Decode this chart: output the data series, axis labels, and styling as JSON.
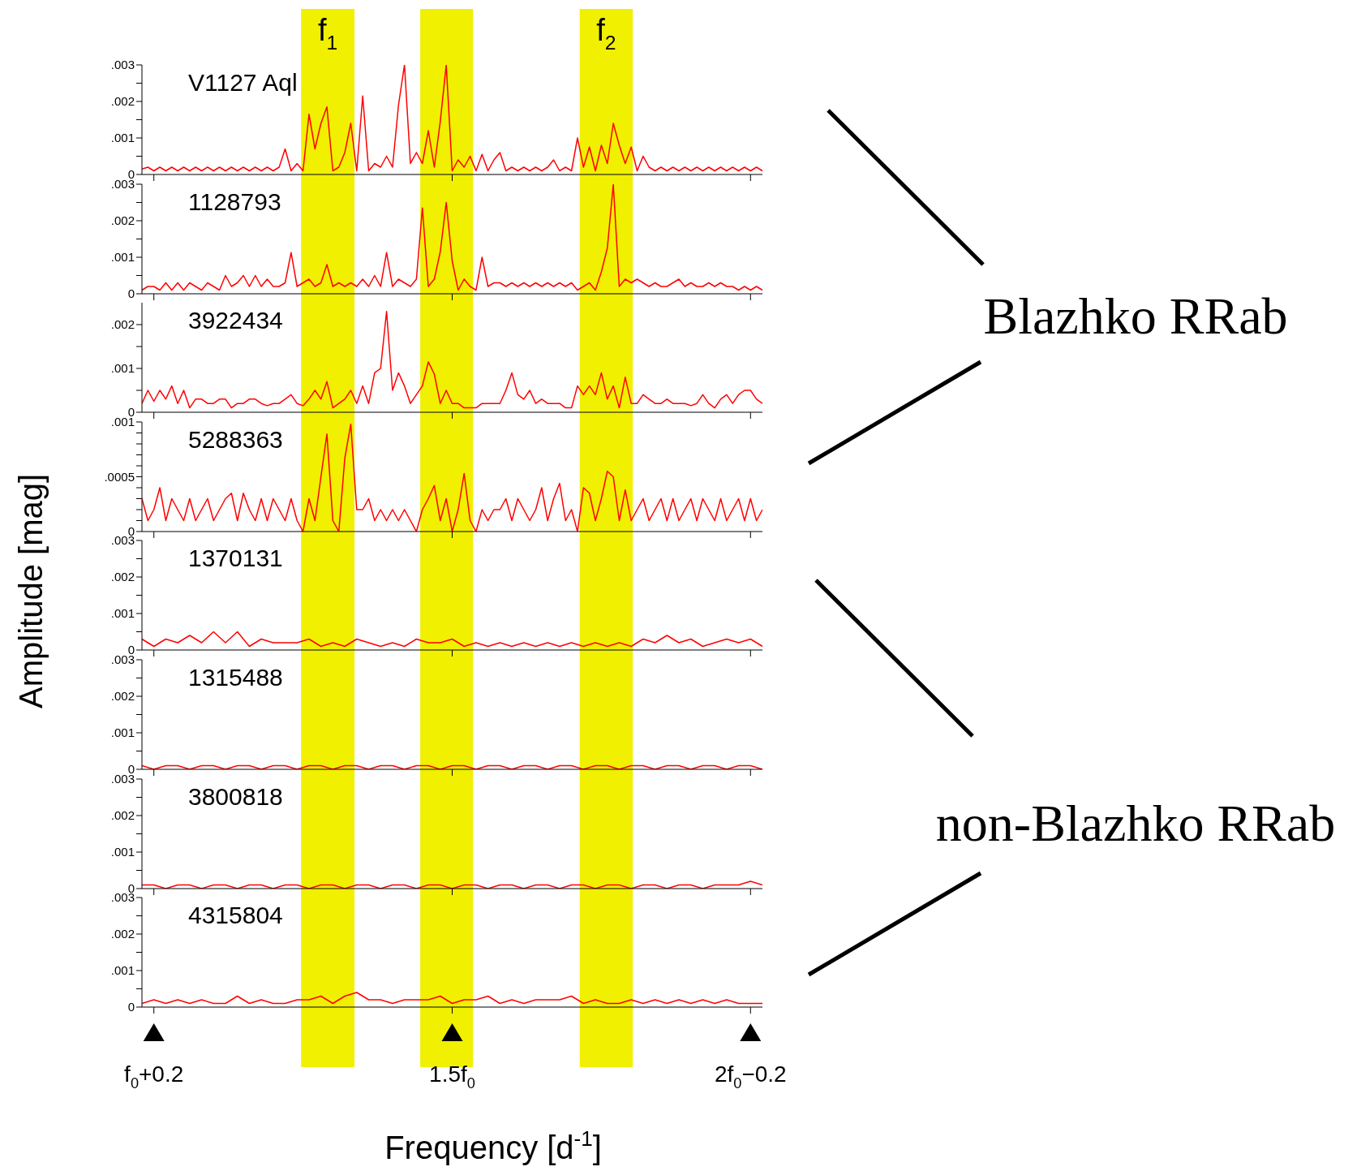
{
  "chart_data": [
    {
      "type": "line",
      "title": "V1127 Aql",
      "annotations": [
        "f$_{1}$",
        "f$_{2}$"
      ],
      "tick_labels": "y",
      "categories": [
        null,
        null,
        null,
        null,
        null,
        null,
        null,
        null,
        null,
        null,
        null,
        null,
        null,
        null,
        null,
        null,
        null,
        null,
        null,
        null,
        null,
        null,
        null,
        null,
        null,
        null,
        null,
        null,
        null,
        null,
        null,
        null,
        null,
        null,
        null,
        null,
        null,
        null,
        null,
        null,
        null,
        null,
        null,
        null,
        null,
        null,
        null,
        null,
        null,
        null,
        null,
        null,
        null,
        null,
        null,
        null,
        null,
        null,
        null,
        null,
        null,
        null,
        null,
        null,
        null,
        null,
        null,
        null,
        null,
        null,
        null,
        null,
        null,
        null,
        null,
        null,
        null,
        null,
        null,
        null,
        null,
        null,
        null,
        null,
        null,
        null,
        null,
        null,
        null,
        null,
        null,
        null,
        null,
        null,
        null,
        null,
        null,
        null,
        null,
        null,
        null,
        null,
        null,
        null,
        null
      ],
      "ylim": [
        0,
        0.003
      ],
      "yticks": [
        {
          "value": 0,
          "label": "0"
        },
        {
          "value": 0.0005,
          "label": null
        },
        {
          "value": 0.001,
          "label": ".001"
        },
        {
          "value": 0.0015,
          "label": null
        },
        {
          "value": 0.002,
          "label": ".002"
        },
        {
          "value": 0.0025,
          "label": null
        },
        {
          "value": 0.003,
          "label": ".003"
        }
      ],
      "series": [
        {
          "color": "#ff0000",
          "values": [
            0.00015,
            0.0002,
            0.0001,
            0.0002,
            0.0001,
            0.0002,
            0.0001,
            0.0002,
            0.0001,
            0.0002,
            0.0001,
            0.0002,
            0.0001,
            0.0002,
            0.0001,
            0.0002,
            0.0001,
            0.0002,
            0.0001,
            0.0002,
            0.0001,
            0.0002,
            0.0001,
            0.0002,
            0.0007,
            0.0001,
            0.0003,
            0.0001,
            0.00165,
            0.0007,
            0.0014,
            0.00185,
            0.0001,
            0.0002,
            0.0006,
            0.0014,
            0.0001,
            0.00215,
            0.0001,
            0.0003,
            0.0002,
            0.0005,
            0.0002,
            0.0019,
            0.003,
            0.0003,
            0.0006,
            0.0003,
            0.0012,
            0.0002,
            0.00145,
            0.003,
            0.0001,
            0.0004,
            0.0002,
            0.0005,
            0.0001,
            0.00055,
            0.0001,
            0.0004,
            0.0006,
            0.0001,
            0.0002,
            0.0001,
            0.0002,
            0.0001,
            0.0002,
            0.0001,
            0.0002,
            0.0004,
            0.0001,
            0.0002,
            0.0001,
            0.001,
            0.0002,
            0.00075,
            0.0001,
            0.0008,
            0.0003,
            0.0014,
            0.0008,
            0.0003,
            0.00075,
            0.0001,
            0.0005,
            0.0002,
            0.0001,
            0.0002,
            0.0001,
            0.0002,
            0.0001,
            0.0002,
            0.0001,
            0.0002,
            0.0001,
            0.0002,
            0.0001,
            0.0002,
            0.0001,
            0.0002,
            0.0001,
            0.0002,
            0.0001,
            0.0002,
            0.0001
          ]
        }
      ]
    },
    {
      "type": "line",
      "title": "1128793",
      "tick_labels": "y",
      "categories": [
        null,
        null,
        null,
        null,
        null,
        null,
        null,
        null,
        null,
        null,
        null,
        null,
        null,
        null,
        null,
        null,
        null,
        null,
        null,
        null,
        null,
        null,
        null,
        null,
        null,
        null,
        null,
        null,
        null,
        null,
        null,
        null,
        null,
        null,
        null,
        null,
        null,
        null,
        null,
        null,
        null,
        null,
        null,
        null,
        null,
        null,
        null,
        null,
        null,
        null,
        null,
        null,
        null,
        null,
        null,
        null,
        null,
        null,
        null,
        null,
        null,
        null,
        null,
        null,
        null,
        null,
        null,
        null,
        null,
        null,
        null,
        null,
        null,
        null,
        null,
        null,
        null,
        null,
        null,
        null,
        null,
        null,
        null,
        null,
        null,
        null,
        null,
        null,
        null,
        null,
        null,
        null,
        null,
        null,
        null,
        null,
        null,
        null,
        null,
        null,
        null,
        null,
        null,
        null,
        null
      ],
      "ylim": [
        0,
        0.003
      ],
      "yticks": [
        {
          "value": 0,
          "label": "0"
        },
        {
          "value": 0.0005,
          "label": null
        },
        {
          "value": 0.001,
          "label": ".001"
        },
        {
          "value": 0.0015,
          "label": null
        },
        {
          "value": 0.002,
          "label": ".002"
        },
        {
          "value": 0.0025,
          "label": null
        },
        {
          "value": 0.003,
          "label": ".003"
        }
      ],
      "series": [
        {
          "color": "#ff0000",
          "values": [
            0.0001,
            0.0002,
            0.0002,
            0.0001,
            0.0003,
            0.0001,
            0.0003,
            0.0001,
            0.0003,
            0.0002,
            0.0001,
            0.0003,
            0.0002,
            0.0001,
            0.0005,
            0.0002,
            0.0003,
            0.0005,
            0.0002,
            0.0005,
            0.0002,
            0.0004,
            0.0002,
            0.0002,
            0.0003,
            0.00113,
            0.0002,
            0.0003,
            0.0004,
            0.0002,
            0.0003,
            0.0008,
            0.0002,
            0.0003,
            0.0002,
            0.0003,
            0.0002,
            0.0004,
            0.0002,
            0.0005,
            0.0002,
            0.00113,
            0.0002,
            0.0004,
            0.0003,
            0.0002,
            0.0004,
            0.00235,
            0.0002,
            0.0004,
            0.00115,
            0.0025,
            0.0009,
            0.0001,
            0.0004,
            0.0002,
            0.0001,
            0.001,
            0.0002,
            0.0003,
            0.0003,
            0.0002,
            0.0003,
            0.0002,
            0.0003,
            0.0002,
            0.0003,
            0.0002,
            0.0003,
            0.0002,
            0.0003,
            0.0002,
            0.0003,
            0.0001,
            0.0002,
            0.0003,
            0.0001,
            0.0006,
            0.00125,
            0.003,
            0.0002,
            0.0004,
            0.0003,
            0.0004,
            0.0003,
            0.0002,
            0.0003,
            0.0002,
            0.0002,
            0.0003,
            0.0004,
            0.0002,
            0.0003,
            0.0002,
            0.0002,
            0.0003,
            0.0002,
            0.0003,
            0.0002,
            0.0002,
            0.0001,
            0.0002,
            0.0001,
            0.0002,
            0.0001
          ]
        }
      ]
    },
    {
      "type": "line",
      "title": "3922434",
      "annotations": [
        "Blazhko RRab"
      ],
      "tick_labels": "y",
      "categories": [
        null,
        null,
        null,
        null,
        null,
        null,
        null,
        null,
        null,
        null,
        null,
        null,
        null,
        null,
        null,
        null,
        null,
        null,
        null,
        null,
        null,
        null,
        null,
        null,
        null,
        null,
        null,
        null,
        null,
        null,
        null,
        null,
        null,
        null,
        null,
        null,
        null,
        null,
        null,
        null,
        null,
        null,
        null,
        null,
        null,
        null,
        null,
        null,
        null,
        null,
        null,
        null,
        null,
        null,
        null,
        null,
        null,
        null,
        null,
        null,
        null,
        null,
        null,
        null,
        null,
        null,
        null,
        null,
        null,
        null,
        null,
        null,
        null,
        null,
        null,
        null,
        null,
        null,
        null,
        null,
        null,
        null,
        null,
        null,
        null,
        null,
        null,
        null,
        null,
        null,
        null,
        null,
        null,
        null,
        null,
        null,
        null,
        null,
        null,
        null,
        null,
        null,
        null,
        null,
        null
      ],
      "ylim": [
        0,
        0.0025
      ],
      "yticks": [
        {
          "value": 0,
          "label": "0"
        },
        {
          "value": 0.0005,
          "label": null
        },
        {
          "value": 0.001,
          "label": ".001"
        },
        {
          "value": 0.0015,
          "label": null
        },
        {
          "value": 0.002,
          "label": ".002"
        }
      ],
      "series": [
        {
          "color": "#ff0000",
          "values": [
            0.0002,
            0.0005,
            0.00025,
            0.0005,
            0.0003,
            0.0006,
            0.0002,
            0.0005,
            0.0001,
            0.0003,
            0.0003,
            0.0002,
            0.0002,
            0.0003,
            0.0003,
            0.0001,
            0.0002,
            0.0002,
            0.0003,
            0.0003,
            0.0002,
            0.00015,
            0.0002,
            0.0002,
            0.0003,
            0.0004,
            0.0002,
            0.00015,
            0.0003,
            0.0005,
            0.0003,
            0.0007,
            0.0001,
            0.0002,
            0.0003,
            0.0005,
            0.0002,
            0.0006,
            0.0002,
            0.0009,
            0.001,
            0.0023,
            0.0005,
            0.0009,
            0.0006,
            0.0002,
            0.0004,
            0.0006,
            0.00115,
            0.00087,
            0.0002,
            0.0005,
            0.0002,
            0.0002,
            0.0001,
            0.0001,
            0.0001,
            0.0002,
            0.0002,
            0.0002,
            0.0002,
            0.0005,
            0.0009,
            0.0004,
            0.0003,
            0.0005,
            0.0002,
            0.0003,
            0.0002,
            0.0002,
            0.0002,
            0.0001,
            0.0001,
            0.0006,
            0.0004,
            0.0006,
            0.0004,
            0.0009,
            0.0003,
            0.0006,
            0.0001,
            0.0008,
            0.0002,
            0.0002,
            0.0004,
            0.0003,
            0.0002,
            0.0002,
            0.0003,
            0.0002,
            0.0002,
            0.0002,
            0.00015,
            0.0002,
            0.0004,
            0.0002,
            0.0001,
            0.0003,
            0.0004,
            0.0002,
            0.0004,
            0.0005,
            0.0005,
            0.0003,
            0.0002
          ]
        }
      ]
    },
    {
      "type": "line",
      "title": "5288363",
      "tick_labels": "y",
      "categories": [
        null,
        null,
        null,
        null,
        null,
        null,
        null,
        null,
        null,
        null,
        null,
        null,
        null,
        null,
        null,
        null,
        null,
        null,
        null,
        null,
        null,
        null,
        null,
        null,
        null,
        null,
        null,
        null,
        null,
        null,
        null,
        null,
        null,
        null,
        null,
        null,
        null,
        null,
        null,
        null,
        null,
        null,
        null,
        null,
        null,
        null,
        null,
        null,
        null,
        null,
        null,
        null,
        null,
        null,
        null,
        null,
        null,
        null,
        null,
        null,
        null,
        null,
        null,
        null,
        null,
        null,
        null,
        null,
        null,
        null,
        null,
        null,
        null,
        null,
        null,
        null,
        null,
        null,
        null,
        null,
        null,
        null,
        null,
        null,
        null,
        null,
        null,
        null,
        null,
        null,
        null,
        null,
        null,
        null,
        null,
        null,
        null,
        null,
        null,
        null,
        null,
        null,
        null,
        null,
        null
      ],
      "ylim": [
        0,
        0.001
      ],
      "yticks": [
        {
          "value": 0,
          "label": "0"
        },
        {
          "value": 0.0001,
          "label": null
        },
        {
          "value": 0.0002,
          "label": null
        },
        {
          "value": 0.0003,
          "label": null
        },
        {
          "value": 0.0004,
          "label": null
        },
        {
          "value": 0.0005,
          "label": ".0005"
        },
        {
          "value": 0.0006,
          "label": null
        },
        {
          "value": 0.0007,
          "label": null
        },
        {
          "value": 0.0008,
          "label": null
        },
        {
          "value": 0.0009,
          "label": null
        },
        {
          "value": 0.001,
          "label": ".001"
        }
      ],
      "series": [
        {
          "color": "#ff0000",
          "values": [
            0.0003,
            0.0001,
            0.0002,
            0.0004,
            0.0001,
            0.0003,
            0.0002,
            0.0001,
            0.0003,
            0.0001,
            0.0002,
            0.0003,
            0.0001,
            0.0002,
            0.0003,
            0.00035,
            0.0001,
            0.00035,
            0.0002,
            0.0001,
            0.0003,
            0.0001,
            0.0003,
            0.0002,
            0.0001,
            0.0003,
            0.0001,
            0.0,
            0.0003,
            0.0001,
            0.0005,
            0.00089,
            0.0001,
            0.0,
            0.00067,
            0.00098,
            0.0002,
            0.0002,
            0.0003,
            0.0001,
            0.0002,
            0.0001,
            0.0002,
            0.0001,
            0.0002,
            0.0001,
            0.0,
            0.0002,
            0.0003,
            0.00042,
            0.0001,
            0.0003,
            0.0,
            0.0002,
            0.00053,
            0.0001,
            0.0,
            0.0002,
            0.0001,
            0.0002,
            0.0002,
            0.0003,
            0.0001,
            0.0003,
            0.0002,
            0.0001,
            0.0002,
            0.0004,
            0.0001,
            0.0003,
            0.00044,
            0.0001,
            0.0002,
            0.0,
            0.0004,
            0.00035,
            0.0001,
            0.0003,
            0.00055,
            0.0005,
            0.0001,
            0.00038,
            0.0001,
            0.0002,
            0.0003,
            0.0001,
            0.0002,
            0.0003,
            0.0001,
            0.0003,
            0.0001,
            0.0002,
            0.0003,
            0.0001,
            0.0003,
            0.0002,
            0.0001,
            0.0003,
            0.0001,
            0.0002,
            0.0003,
            0.0001,
            0.0003,
            0.0001,
            0.0002
          ]
        }
      ]
    },
    {
      "type": "line",
      "title": "1370131",
      "ylabel": "Amplitude [mag]",
      "tick_labels": "y",
      "categories": [
        null,
        null,
        null,
        null,
        null,
        null,
        null,
        null,
        null,
        null,
        null,
        null,
        null,
        null,
        null,
        null,
        null,
        null,
        null,
        null,
        null,
        null,
        null,
        null,
        null,
        null,
        null,
        null,
        null,
        null,
        null,
        null,
        null,
        null,
        null,
        null,
        null,
        null,
        null,
        null,
        null,
        null,
        null,
        null,
        null,
        null,
        null,
        null,
        null,
        null,
        null,
        null,
        null
      ],
      "ylim": [
        0,
        0.003
      ],
      "yticks": [
        {
          "value": 0,
          "label": "0"
        },
        {
          "value": 0.0005,
          "label": null
        },
        {
          "value": 0.001,
          "label": ".001"
        },
        {
          "value": 0.0015,
          "label": null
        },
        {
          "value": 0.002,
          "label": ".002"
        },
        {
          "value": 0.0025,
          "label": null
        },
        {
          "value": 0.003,
          "label": ".003"
        }
      ],
      "series": [
        {
          "color": "#ff0000",
          "values": [
            0.0003,
            0.0001,
            0.0003,
            0.0002,
            0.0004,
            0.0002,
            0.0005,
            0.0002,
            0.0005,
            0.0001,
            0.0003,
            0.0002,
            0.0002,
            0.0002,
            0.0003,
            0.0001,
            0.0002,
            0.0001,
            0.0003,
            0.0002,
            0.0001,
            0.0002,
            0.0001,
            0.0003,
            0.0002,
            0.0002,
            0.0003,
            0.0001,
            0.0002,
            0.0001,
            0.0002,
            0.0001,
            0.0002,
            0.0001,
            0.0002,
            0.0001,
            0.0002,
            0.0001,
            0.0002,
            0.0001,
            0.0002,
            0.0001,
            0.0003,
            0.0002,
            0.0004,
            0.0002,
            0.0003,
            0.0001,
            0.0002,
            0.0003,
            0.0002,
            0.0003,
            0.0001
          ]
        }
      ]
    },
    {
      "type": "line",
      "title": "1315488",
      "tick_labels": "y",
      "categories": [
        null,
        null,
        null,
        null,
        null,
        null,
        null,
        null,
        null,
        null,
        null,
        null,
        null,
        null,
        null,
        null,
        null,
        null,
        null,
        null,
        null,
        null,
        null,
        null,
        null,
        null,
        null,
        null,
        null,
        null,
        null,
        null,
        null,
        null,
        null,
        null,
        null,
        null,
        null,
        null,
        null,
        null,
        null,
        null,
        null,
        null,
        null,
        null,
        null,
        null,
        null,
        null,
        null
      ],
      "ylim": [
        0,
        0.003
      ],
      "yticks": [
        {
          "value": 0,
          "label": "0"
        },
        {
          "value": 0.0005,
          "label": null
        },
        {
          "value": 0.001,
          "label": ".001"
        },
        {
          "value": 0.0015,
          "label": null
        },
        {
          "value": 0.002,
          "label": ".002"
        },
        {
          "value": 0.0025,
          "label": null
        },
        {
          "value": 0.003,
          "label": ".003"
        }
      ],
      "series": [
        {
          "color": "#ff0000",
          "values": [
            0.0001,
            0.0,
            0.0001,
            0.0001,
            0.0,
            0.0001,
            0.0001,
            0.0,
            0.0001,
            0.0001,
            0.0,
            0.0001,
            0.0001,
            0.0,
            0.0001,
            0.0001,
            0.0,
            0.0001,
            0.0001,
            0.0,
            0.0001,
            0.0001,
            0.0,
            0.0001,
            0.0001,
            0.0,
            0.0001,
            0.0001,
            0.0,
            0.0001,
            0.0001,
            0.0,
            0.0001,
            0.0001,
            0.0,
            0.0001,
            0.0001,
            0.0,
            0.0001,
            0.0001,
            0.0,
            0.0001,
            0.0001,
            0.0,
            0.0001,
            0.0001,
            0.0,
            0.0001,
            0.0001,
            0.0,
            0.0001,
            0.0001,
            0.0
          ]
        }
      ]
    },
    {
      "type": "line",
      "title": "3800818",
      "annotations": [
        "non-Blazhko RRab"
      ],
      "tick_labels": "y",
      "categories": [
        null,
        null,
        null,
        null,
        null,
        null,
        null,
        null,
        null,
        null,
        null,
        null,
        null,
        null,
        null,
        null,
        null,
        null,
        null,
        null,
        null,
        null,
        null,
        null,
        null,
        null,
        null,
        null,
        null,
        null,
        null,
        null,
        null,
        null,
        null,
        null,
        null,
        null,
        null,
        null,
        null,
        null,
        null,
        null,
        null,
        null,
        null,
        null,
        null,
        null,
        null,
        null,
        null
      ],
      "ylim": [
        0,
        0.003
      ],
      "yticks": [
        {
          "value": 0,
          "label": "0"
        },
        {
          "value": 0.0005,
          "label": null
        },
        {
          "value": 0.001,
          "label": ".001"
        },
        {
          "value": 0.0015,
          "label": null
        },
        {
          "value": 0.002,
          "label": ".002"
        },
        {
          "value": 0.0025,
          "label": null
        },
        {
          "value": 0.003,
          "label": ".003"
        }
      ],
      "series": [
        {
          "color": "#ff0000",
          "values": [
            0.0001,
            0.0001,
            0.0,
            0.0001,
            0.0001,
            0.0,
            0.0001,
            0.0001,
            0.0,
            0.0001,
            0.0001,
            0.0,
            0.0001,
            0.0001,
            0.0,
            0.0001,
            0.0001,
            0.0,
            0.0001,
            0.0001,
            0.0,
            0.0001,
            0.0001,
            0.0,
            0.0001,
            0.0001,
            0.0,
            0.0001,
            0.0001,
            0.0,
            0.0001,
            0.0001,
            0.0,
            0.0001,
            0.0001,
            0.0,
            0.0001,
            0.0001,
            0.0,
            0.0001,
            0.0001,
            0.0,
            0.0001,
            0.0001,
            0.0,
            0.0001,
            0.0001,
            0.0,
            0.0001,
            0.0001,
            0.0001,
            0.0002,
            0.0001
          ]
        }
      ]
    },
    {
      "type": "line",
      "title": "4315804",
      "xlabel": "Frequency [d$^{-1}$]",
      "categories": [
        null,
        "f$_{0}$+0.2",
        null,
        null,
        null,
        null,
        null,
        null,
        null,
        null,
        null,
        null,
        null,
        null,
        null,
        null,
        null,
        null,
        null,
        null,
        null,
        null,
        null,
        null,
        null,
        null,
        "1.5f$_{0}$",
        null,
        null,
        null,
        null,
        null,
        null,
        null,
        null,
        null,
        null,
        null,
        null,
        null,
        null,
        null,
        null,
        null,
        null,
        null,
        null,
        null,
        null,
        null,
        null,
        "2f$_{0}$−0.2",
        null
      ],
      "ylim": [
        0,
        0.003
      ],
      "yticks": [
        {
          "value": 0,
          "label": "0"
        },
        {
          "value": 0.0005,
          "label": null
        },
        {
          "value": 0.001,
          "label": ".001"
        },
        {
          "value": 0.0015,
          "label": null
        },
        {
          "value": 0.002,
          "label": ".002"
        },
        {
          "value": 0.0025,
          "label": null
        },
        {
          "value": 0.003,
          "label": ".003"
        }
      ],
      "series": [
        {
          "color": "#ff0000",
          "values": [
            0.0001,
            0.0002,
            0.0001,
            0.0002,
            0.0001,
            0.0002,
            0.0001,
            0.0001,
            0.0003,
            0.0001,
            0.0002,
            0.0001,
            0.0001,
            0.0002,
            0.0002,
            0.0003,
            0.0001,
            0.0003,
            0.0004,
            0.0002,
            0.0002,
            0.0001,
            0.0002,
            0.0002,
            0.0002,
            0.0003,
            0.0001,
            0.0002,
            0.0002,
            0.0003,
            0.0001,
            0.0002,
            0.0001,
            0.0002,
            0.0002,
            0.0002,
            0.0003,
            0.0001,
            0.0002,
            0.0001,
            0.0001,
            0.0002,
            0.0001,
            0.0002,
            0.0001,
            0.0002,
            0.0001,
            0.0002,
            0.0001,
            0.0002,
            0.0001,
            0.0001,
            0.0001
          ]
        }
      ]
    }
  ]
}
